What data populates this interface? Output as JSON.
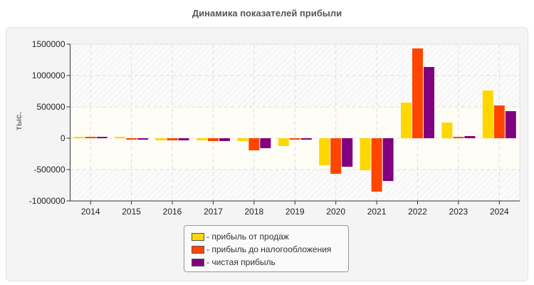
{
  "chart_data": {
    "type": "bar",
    "title": "Динамика показателей прибыли",
    "ylabel": "тыс.",
    "xlabel": "",
    "ylim": [
      -1000000,
      1500000
    ],
    "yticks": [
      "1500000",
      "1000000",
      "500000",
      "0",
      "-500000",
      "-1000000"
    ],
    "ytick_values": [
      1500000,
      1000000,
      500000,
      0,
      -500000,
      -1000000
    ],
    "grid": true,
    "legend_position": "bottom",
    "categories": [
      "2014",
      "2015",
      "2016",
      "2017",
      "2018",
      "2019",
      "2020",
      "2021",
      "2022",
      "2023",
      "2024"
    ],
    "series": [
      {
        "name": "- прибыль от продаж",
        "color": "#FFD700",
        "values": [
          15000,
          5000,
          -34000,
          -34000,
          -45000,
          -125000,
          -432000,
          -511000,
          568000,
          250000,
          761000
        ]
      },
      {
        "name": "- прибыль до налогообложения",
        "color": "#FF4500",
        "values": [
          15000,
          -10000,
          -34000,
          -45000,
          -193000,
          -10000,
          -568000,
          -852000,
          1432000,
          15000,
          523000
        ]
      },
      {
        "name": "- чистая прибыль",
        "color": "#800080",
        "values": [
          18000,
          -8000,
          -34000,
          -45000,
          -159000,
          -10000,
          -455000,
          -682000,
          1136000,
          35000,
          432000
        ]
      }
    ]
  }
}
